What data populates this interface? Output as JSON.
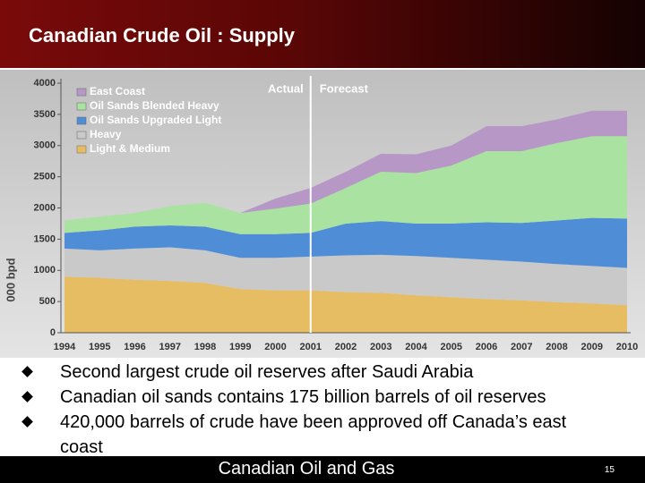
{
  "slide": {
    "title": "Canadian Crude Oil : Supply",
    "bullets": [
      "Second largest crude oil reserves after Saudi Arabia",
      "Canadian oil sands contains 175 billion barrels of oil reserves",
      "420,000 barrels of crude have been approved off Canada’s east coast"
    ],
    "footer": "Canadian Oil and Gas",
    "page_number": "15"
  },
  "chart_data": {
    "type": "area",
    "stacked": true,
    "ylabel": "000 bpd",
    "categories": [
      "1994",
      "1995",
      "1996",
      "1997",
      "1998",
      "1999",
      "2000",
      "2001",
      "2002",
      "2003",
      "2004",
      "2005",
      "2006",
      "2007",
      "2008",
      "2009",
      "2010"
    ],
    "series": [
      {
        "name": "Light & Medium",
        "color": "#e6bd62",
        "values": [
          900,
          880,
          850,
          830,
          800,
          700,
          680,
          680,
          650,
          640,
          600,
          570,
          540,
          520,
          490,
          470,
          440
        ]
      },
      {
        "name": "Heavy",
        "color": "#c9c9c9",
        "values": [
          450,
          440,
          500,
          540,
          520,
          500,
          520,
          540,
          590,
          610,
          630,
          630,
          630,
          620,
          610,
          600,
          600
        ]
      },
      {
        "name": "Oil Sands Upgraded Light",
        "color": "#4f8ed6",
        "values": [
          250,
          320,
          350,
          350,
          380,
          380,
          380,
          380,
          510,
          540,
          520,
          550,
          600,
          620,
          700,
          770,
          790
        ]
      },
      {
        "name": "Oil Sands Blended Heavy",
        "color": "#a9e2a1",
        "values": [
          200,
          220,
          220,
          310,
          380,
          340,
          410,
          470,
          570,
          790,
          810,
          930,
          1140,
          1150,
          1240,
          1310,
          1320
        ]
      },
      {
        "name": "East Coast",
        "color": "#b797c6",
        "values": [
          0,
          0,
          0,
          0,
          0,
          0,
          160,
          250,
          260,
          290,
          300,
          320,
          400,
          400,
          380,
          410,
          410
        ]
      }
    ],
    "ylim": [
      0,
      4000
    ],
    "yticks": [
      0,
      500,
      1000,
      1500,
      2000,
      2500,
      3000,
      3500,
      4000
    ],
    "annotations": [
      "Actual",
      "Forecast"
    ],
    "divider_category": "2001",
    "legend": "upper left"
  }
}
